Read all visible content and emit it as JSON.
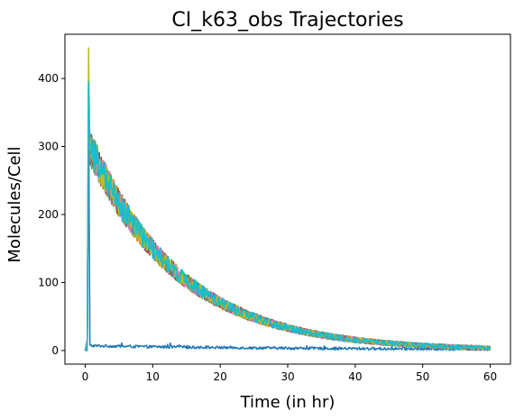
{
  "chart_data": {
    "type": "line",
    "title": "CI_k63_obs Trajectories",
    "xlabel": "Time (in hr)",
    "ylabel": "Molecules/Cell",
    "xlim": [
      -3,
      63
    ],
    "ylim": [
      -20,
      465
    ],
    "xticks": [
      0,
      10,
      20,
      30,
      40,
      50,
      60
    ],
    "yticks": [
      0,
      100,
      200,
      300,
      400
    ],
    "grid": false,
    "legend": "none",
    "model": {
      "rise_end_hr": 0.3,
      "peak_time_hr": 0.5,
      "decay_start_hr": 0.7,
      "plateau_molecules": 300,
      "decay_rate_per_hr": 0.075,
      "noise_fraction": 0.08,
      "time_step_hr": 0.1
    },
    "series": [
      {
        "color": "#1f77b4",
        "peak": 395,
        "baseline_low": true
      },
      {
        "color": "#ff7f0e",
        "peak": 355
      },
      {
        "color": "#2ca02c",
        "peak": 340
      },
      {
        "color": "#d62728",
        "peak": 330
      },
      {
        "color": "#9467bd",
        "peak": 345
      },
      {
        "color": "#8c564b",
        "peak": 325
      },
      {
        "color": "#e377c2",
        "peak": 360
      },
      {
        "color": "#7f7f7f",
        "peak": 335
      },
      {
        "color": "#bcbd22",
        "peak": 445
      },
      {
        "color": "#17becf",
        "peak": 395
      }
    ]
  }
}
